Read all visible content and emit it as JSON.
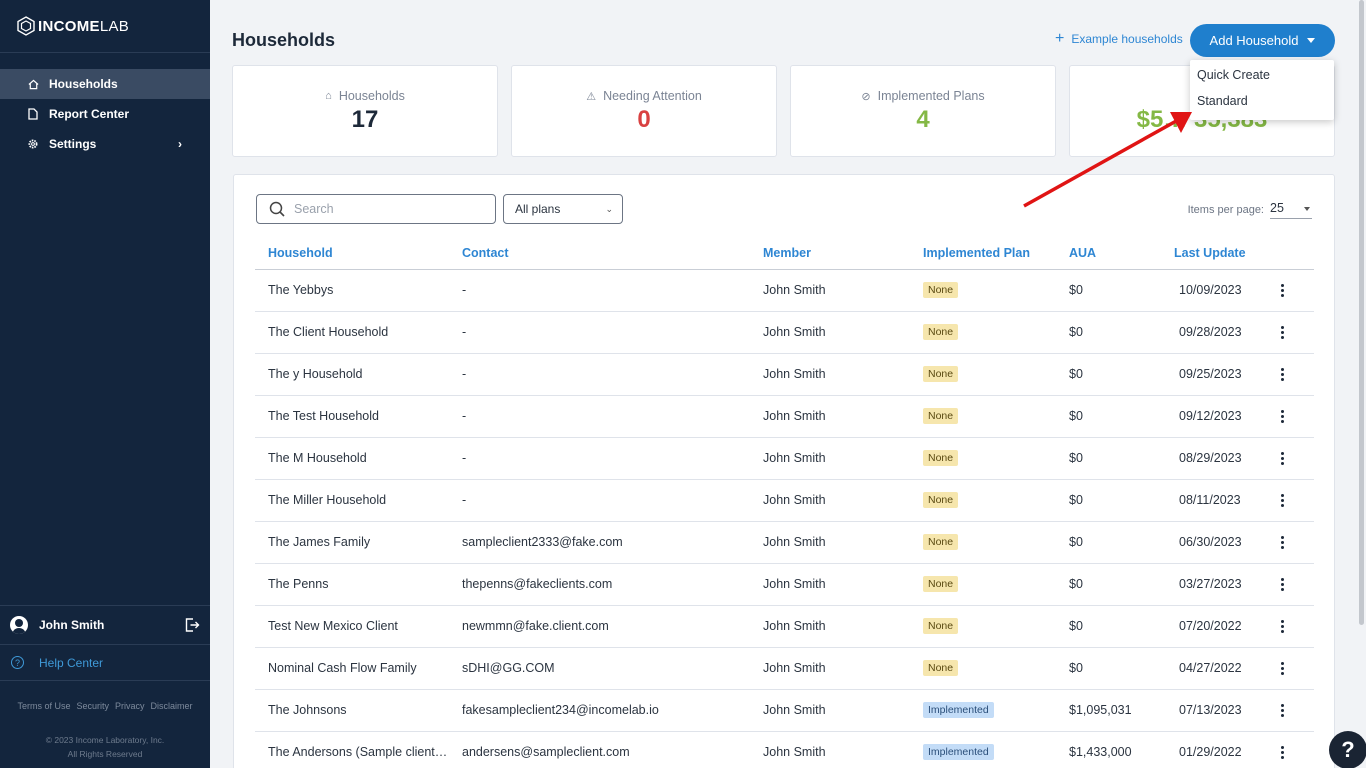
{
  "brand": {
    "name_bold": "INCOME",
    "name_light": "LAB"
  },
  "sidebar": {
    "items": [
      {
        "label": "Households",
        "icon": "home-icon",
        "active": true
      },
      {
        "label": "Report Center",
        "icon": "document-icon"
      },
      {
        "label": "Settings",
        "icon": "gear-icon"
      }
    ],
    "user": {
      "name": "John Smith"
    },
    "help_label": "Help Center",
    "footer_links": [
      "Terms of Use",
      "Security",
      "Privacy",
      "Disclaimer"
    ],
    "copyright_line1": "© 2023 Income Laboratory, Inc.",
    "copyright_line2": "All Rights Reserved"
  },
  "header": {
    "title": "Households",
    "example_link": "Example households",
    "add_button": "Add Household"
  },
  "dropdown": {
    "options": [
      "Quick Create",
      "Standard"
    ]
  },
  "cards": [
    {
      "label": "Households",
      "value": "17",
      "color": "#1d2939",
      "icon": "home-icon"
    },
    {
      "label": "Needing Attention",
      "value": "0",
      "color": "#d94141",
      "icon": "warning-icon"
    },
    {
      "label": "Implemented Plans",
      "value": "4",
      "color": "#84b845",
      "icon": "check-circle-icon"
    },
    {
      "label": "$",
      "value": "$5… 35,383",
      "color": "#84b845",
      "icon": ""
    }
  ],
  "filters": {
    "search_placeholder": "Search",
    "plan_filter": "All plans",
    "items_per_page_label": "Items per page:",
    "items_per_page": "25"
  },
  "table": {
    "columns": [
      "Household",
      "Contact",
      "Member",
      "Implemented Plan",
      "AUA",
      "Last Update"
    ],
    "rows": [
      {
        "household": "The Yebbys",
        "contact": "-",
        "member": "John Smith",
        "plan": "None",
        "aua": "$0",
        "updated": "10/09/2023"
      },
      {
        "household": "The Client Household",
        "contact": "-",
        "member": "John Smith",
        "plan": "None",
        "aua": "$0",
        "updated": "09/28/2023"
      },
      {
        "household": "The y Household",
        "contact": "-",
        "member": "John Smith",
        "plan": "None",
        "aua": "$0",
        "updated": "09/25/2023"
      },
      {
        "household": "The Test Household",
        "contact": "-",
        "member": "John Smith",
        "plan": "None",
        "aua": "$0",
        "updated": "09/12/2023"
      },
      {
        "household": "The M Household",
        "contact": "-",
        "member": "John Smith",
        "plan": "None",
        "aua": "$0",
        "updated": "08/29/2023"
      },
      {
        "household": "The Miller Household",
        "contact": "-",
        "member": "John Smith",
        "plan": "None",
        "aua": "$0",
        "updated": "08/11/2023"
      },
      {
        "household": "The James Family",
        "contact": "sampleclient2333@fake.com",
        "member": "John Smith",
        "plan": "None",
        "aua": "$0",
        "updated": "06/30/2023"
      },
      {
        "household": "The Penns",
        "contact": "thepenns@fakeclients.com",
        "member": "John Smith",
        "plan": "None",
        "aua": "$0",
        "updated": "03/27/2023"
      },
      {
        "household": "Test New Mexico Client",
        "contact": "newmmn@fake.client.com",
        "member": "John Smith",
        "plan": "None",
        "aua": "$0",
        "updated": "07/20/2022"
      },
      {
        "household": "Nominal Cash Flow Family",
        "contact": "sDHI@GG.COM",
        "member": "John Smith",
        "plan": "None",
        "aua": "$0",
        "updated": "04/27/2022"
      },
      {
        "household": "The Johnsons",
        "contact": "fakesampleclient234@incomelab.io",
        "member": "John Smith",
        "plan": "Implemented",
        "aua": "$1,095,031",
        "updated": "07/13/2023"
      },
      {
        "household": "The Andersons (Sample client: ...",
        "contact": "andersens@sampleclient.com",
        "member": "John Smith",
        "plan": "Implemented",
        "aua": "$1,433,000",
        "updated": "01/29/2022"
      }
    ]
  },
  "help_fab": "?"
}
